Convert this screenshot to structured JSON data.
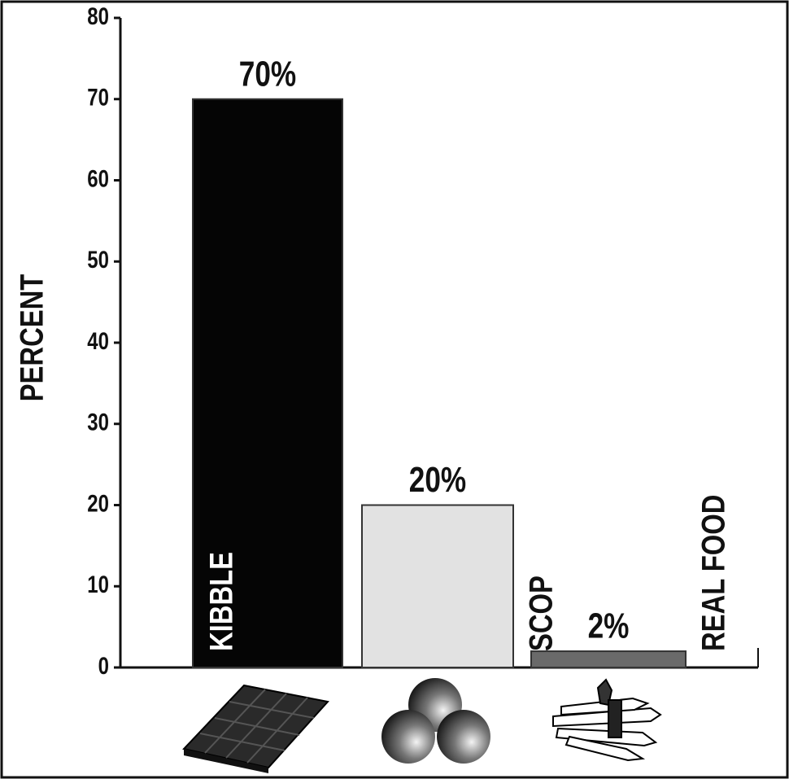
{
  "chart_data": {
    "type": "bar",
    "y_label": "PERCENT",
    "categories": [
      "KIBBLE",
      "SCOP",
      "REAL FOOD"
    ],
    "values": [
      70,
      20,
      2
    ],
    "value_labels": [
      "70%",
      "20%",
      "2%"
    ],
    "colors": [
      "#050505",
      "#e2e2e2",
      "#6a6a6a"
    ],
    "ylim": [
      0,
      80
    ],
    "yticks": [
      0,
      10,
      20,
      30,
      40,
      50,
      60,
      70,
      80
    ],
    "grid": false
  }
}
